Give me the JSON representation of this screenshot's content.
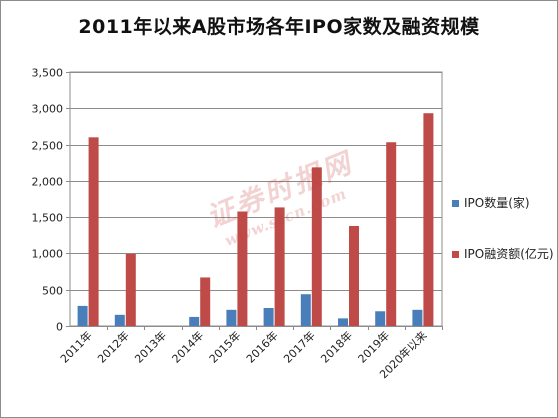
{
  "chart_data": {
    "type": "bar",
    "title": "2011年以来A股市场各年IPO家数及融资规模",
    "categories": [
      "2011年",
      "2012年",
      "2013年",
      "2014年",
      "2015年",
      "2016年",
      "2017年",
      "2018年",
      "2019年",
      "2020年以来"
    ],
    "series": [
      {
        "name": "IPO数量(家)",
        "color": "#4a7ebb",
        "values": [
          277,
          154,
          0,
          125,
          223,
          248,
          438,
          105,
          203,
          223
        ]
      },
      {
        "name": "IPO融资额(亿元)",
        "color": "#be4b48",
        "values": [
          2600,
          995,
          0,
          669,
          1578,
          1634,
          2186,
          1378,
          2532,
          2932
        ]
      }
    ],
    "ylim": [
      0,
      3500
    ],
    "yticks": [
      "0",
      "500",
      "1,000",
      "1,500",
      "2,000",
      "2,500",
      "3,000",
      "3,500"
    ],
    "ytick_values": [
      0,
      500,
      1000,
      1500,
      2000,
      2500,
      3000,
      3500
    ],
    "grid": true,
    "legend_position": "right"
  },
  "watermark": {
    "main": "证券时报网",
    "url": "www.stcn.com"
  }
}
